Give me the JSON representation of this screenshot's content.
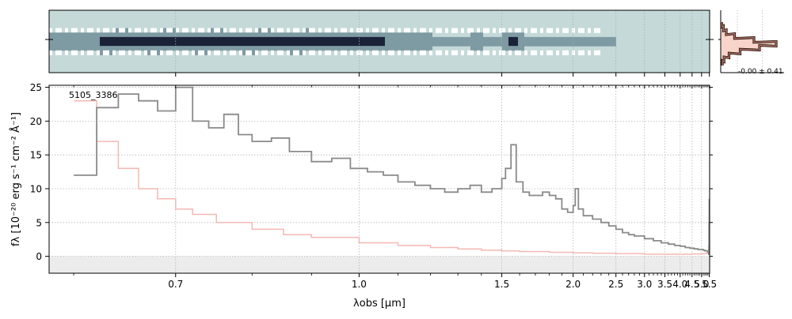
{
  "chart_data": [
    {
      "type": "heatmap",
      "description_role": "2D spectrum",
      "colormap": [
        "#ffffff",
        "#c9dcdc",
        "#7e9aa3",
        "#1a2238"
      ],
      "background_color": "#c5d9d9",
      "grid": true
    },
    {
      "type": "line",
      "role": "spatial profile",
      "annotation": "-0.00 ± 0.41",
      "profile": [
        0.02,
        0.05,
        0.1,
        0.25,
        0.6,
        1.0,
        0.7,
        0.35,
        0.15,
        0.06,
        0.03
      ],
      "colors": {
        "outer": "#2a120a",
        "inner": "#b0766a",
        "fill": "#f6c9bd"
      }
    },
    {
      "type": "line",
      "annotation": "5105_3386",
      "xlabel": "λobs [μm]",
      "ylabel": "fλ [10⁻²⁰ erg s⁻¹ cm⁻² Å⁻¹]",
      "xscale": "reciprocal",
      "xlim": [
        0.58,
        5.52
      ],
      "ylim": [
        -2.5,
        25.3
      ],
      "xticks": [
        0.7,
        1.0,
        1.5,
        2.0,
        2.5,
        3.0,
        3.5,
        4.0,
        4.5,
        5.0,
        5.5
      ],
      "xtick_labels": [
        "0.7",
        "1.0",
        "1.5",
        "2.0",
        "2.5",
        "3.0",
        "3.5",
        "4.0",
        "4.5",
        "5.0",
        "5.5"
      ],
      "yticks": [
        0,
        5,
        10,
        15,
        20,
        25
      ],
      "ytick_labels": [
        "0",
        "5",
        "10",
        "15",
        "20",
        "25"
      ],
      "grid": true,
      "series": [
        {
          "role": "flux",
          "color": "#8a8a8a",
          "x": [
            0.6,
            0.62,
            0.64,
            0.66,
            0.68,
            0.7,
            0.72,
            0.74,
            0.76,
            0.78,
            0.8,
            0.83,
            0.86,
            0.9,
            0.94,
            0.98,
            1.02,
            1.06,
            1.1,
            1.15,
            1.2,
            1.25,
            1.3,
            1.35,
            1.4,
            1.45,
            1.5,
            1.52,
            1.55,
            1.58,
            1.62,
            1.66,
            1.7,
            1.75,
            1.8,
            1.85,
            1.9,
            1.95,
            2.0,
            2.02,
            2.05,
            2.1,
            2.2,
            2.3,
            2.4,
            2.5,
            2.6,
            2.7,
            2.8,
            3.0,
            3.2,
            3.4,
            3.6,
            3.8,
            4.0,
            4.2,
            4.4,
            4.6,
            4.8,
            5.0,
            5.1,
            5.2,
            5.3,
            5.4,
            5.45,
            5.48,
            5.5
          ],
          "y": [
            12.0,
            22.0,
            24.0,
            23.0,
            21.5,
            25.0,
            20.0,
            19.0,
            21.0,
            18.0,
            17.0,
            17.5,
            15.5,
            14.0,
            14.5,
            13.0,
            12.5,
            12.0,
            11.0,
            10.5,
            10.0,
            9.5,
            10.0,
            10.5,
            9.5,
            10.0,
            11.5,
            13.0,
            16.5,
            11.0,
            9.5,
            9.0,
            9.0,
            9.5,
            9.0,
            8.5,
            7.0,
            6.5,
            7.5,
            10.0,
            7.0,
            6.0,
            5.5,
            5.0,
            4.5,
            4.0,
            3.5,
            3.2,
            3.0,
            2.6,
            2.3,
            2.0,
            1.8,
            1.6,
            1.5,
            1.3,
            1.2,
            1.1,
            1.0,
            1.0,
            0.9,
            0.8,
            0.8,
            0.6,
            0.3,
            5.0,
            8.5
          ]
        },
        {
          "role": "uncertainty",
          "color": "#f4b8b4",
          "x": [
            0.6,
            0.62,
            0.64,
            0.66,
            0.68,
            0.7,
            0.72,
            0.75,
            0.8,
            0.85,
            0.9,
            1.0,
            1.1,
            1.2,
            1.3,
            1.4,
            1.5,
            1.6,
            1.8,
            2.0,
            2.2,
            2.5,
            3.0,
            3.5,
            4.0,
            4.5,
            5.0,
            5.3,
            5.4,
            5.45,
            5.48,
            5.5
          ],
          "y": [
            23.0,
            17.0,
            13.0,
            10.0,
            8.5,
            7.0,
            6.2,
            5.0,
            4.0,
            3.2,
            2.8,
            2.0,
            1.6,
            1.3,
            1.1,
            0.9,
            0.8,
            0.7,
            0.6,
            0.5,
            0.45,
            0.4,
            0.3,
            0.3,
            0.3,
            0.35,
            0.4,
            0.5,
            0.8,
            1.5,
            3.0,
            6.0
          ]
        }
      ],
      "zero_band_color": "#ececec"
    }
  ]
}
